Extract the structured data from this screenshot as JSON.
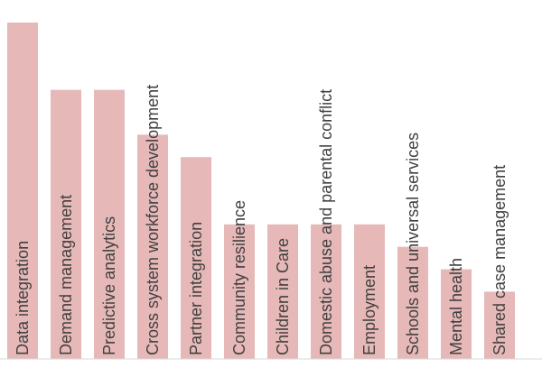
{
  "chart_data": {
    "type": "bar",
    "orientation": "vertical",
    "categories": [
      "Data integration",
      "Demand management",
      "Predictive analytics",
      "Cross system workforce development",
      "Partner integration",
      "Community resilience",
      "Children in Care",
      "Domestic abuse and parental conflict",
      "Employment",
      "Schools and universal services",
      "Mental health",
      "Shared case management"
    ],
    "values": [
      15,
      12,
      12,
      10,
      9,
      6,
      6,
      6,
      6,
      5,
      4,
      3
    ],
    "ylim": [
      0,
      16
    ],
    "title": "",
    "xlabel": "",
    "ylabel": "",
    "grid": false,
    "legend": "none",
    "bar_color": "#e6b9b8",
    "label_color": "#404040",
    "label_position": "inside-bar-vertical"
  }
}
